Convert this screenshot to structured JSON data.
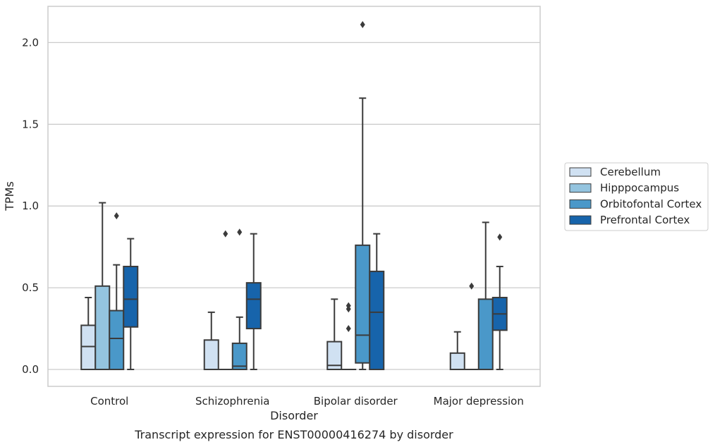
{
  "chart_data": {
    "type": "box",
    "title": "",
    "caption": "Transcript expression for ENST00000416274 by disorder",
    "xlabel": "Disorder",
    "ylabel": "TPMs",
    "ylim": [
      -0.1,
      2.23
    ],
    "yticks": [
      0.0,
      0.5,
      1.0,
      1.5,
      2.0
    ],
    "ytick_labels": [
      "0.0",
      "0.5",
      "1.0",
      "1.5",
      "2.0"
    ],
    "grid": "horizontal",
    "legend_position": "right",
    "categories": [
      "Control",
      "Schizophrenia",
      "Bipolar disorder",
      "Major depression"
    ],
    "series": [
      {
        "name": "Cerebellum",
        "color": "#d0e1f2",
        "boxes": [
          {
            "min": 0.0,
            "q1": 0.0,
            "median": 0.14,
            "q3": 0.27,
            "max": 0.44,
            "outliers": []
          },
          {
            "min": 0.0,
            "q1": 0.0,
            "median": 0.0,
            "q3": 0.18,
            "max": 0.35,
            "outliers": []
          },
          {
            "min": 0.0,
            "q1": 0.0,
            "median": 0.025,
            "q3": 0.17,
            "max": 0.43,
            "outliers": []
          },
          {
            "min": 0.0,
            "q1": 0.0,
            "median": 0.0,
            "q3": 0.1,
            "max": 0.23,
            "outliers": []
          }
        ]
      },
      {
        "name": "Hipppocampus",
        "color": "#94c4df",
        "boxes": [
          {
            "min": 0.0,
            "q1": 0.0,
            "median": 0.0,
            "q3": 0.51,
            "max": 1.02,
            "outliers": []
          },
          {
            "min": 0.0,
            "q1": 0.0,
            "median": 0.0,
            "q3": 0.0,
            "max": 0.0,
            "outliers": [
              0.83
            ]
          },
          {
            "min": 0.0,
            "q1": 0.0,
            "median": 0.0,
            "q3": 0.0,
            "max": 0.0,
            "outliers": [
              0.25,
              0.37,
              0.39
            ]
          },
          {
            "min": 0.0,
            "q1": 0.0,
            "median": 0.0,
            "q3": 0.0,
            "max": 0.0,
            "outliers": [
              0.51
            ]
          }
        ]
      },
      {
        "name": "Orbitofontal Cortex",
        "color": "#4a98c9",
        "boxes": [
          {
            "min": 0.0,
            "q1": 0.0,
            "median": 0.19,
            "q3": 0.36,
            "max": 0.64,
            "outliers": [
              0.94
            ]
          },
          {
            "min": 0.0,
            "q1": 0.0,
            "median": 0.02,
            "q3": 0.16,
            "max": 0.32,
            "outliers": [
              0.84
            ]
          },
          {
            "min": 0.0,
            "q1": 0.04,
            "median": 0.21,
            "q3": 0.76,
            "max": 1.66,
            "outliers": [
              2.11
            ]
          },
          {
            "min": 0.0,
            "q1": 0.0,
            "median": 0.0,
            "q3": 0.43,
            "max": 0.9,
            "outliers": []
          }
        ]
      },
      {
        "name": "Prefrontal Cortex",
        "color": "#1764ab",
        "boxes": [
          {
            "min": 0.0,
            "q1": 0.26,
            "median": 0.43,
            "q3": 0.63,
            "max": 0.8,
            "outliers": []
          },
          {
            "min": 0.0,
            "q1": 0.25,
            "median": 0.43,
            "q3": 0.53,
            "max": 0.83,
            "outliers": []
          },
          {
            "min": 0.0,
            "q1": 0.0,
            "median": 0.35,
            "q3": 0.6,
            "max": 0.83,
            "outliers": []
          },
          {
            "min": 0.0,
            "q1": 0.24,
            "median": 0.34,
            "q3": 0.44,
            "max": 0.63,
            "outliers": [
              0.81
            ]
          }
        ]
      }
    ]
  }
}
